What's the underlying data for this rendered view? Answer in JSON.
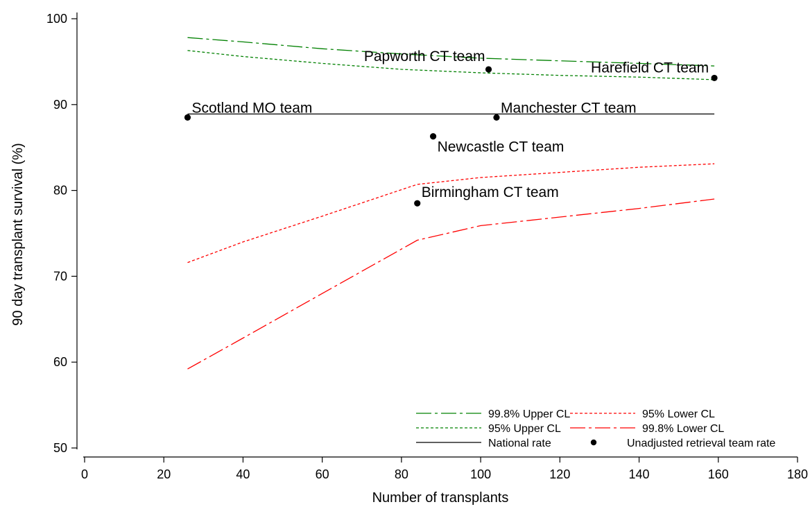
{
  "chart_data": {
    "type": "line",
    "xlabel": "Number of transplants",
    "ylabel": "90 day transplant survival (%)",
    "xlim": [
      0,
      180
    ],
    "ylim": [
      50,
      100
    ],
    "xticks": [
      0,
      20,
      40,
      60,
      80,
      100,
      120,
      140,
      160,
      180
    ],
    "yticks": [
      50,
      60,
      70,
      80,
      90,
      100
    ],
    "grid": false,
    "legend_position": "bottom-right",
    "series": [
      {
        "name": "99.8% Upper CL",
        "style": "dash-dot",
        "color": "#008000",
        "x": [
          26,
          40,
          60,
          80,
          100,
          120,
          140,
          159
        ],
        "y": [
          97.8,
          97.3,
          96.5,
          95.9,
          95.4,
          95.1,
          94.8,
          94.5
        ]
      },
      {
        "name": "95% Lower CL",
        "style": "dotted",
        "color": "#ff0000",
        "x": [
          26,
          40,
          60,
          84,
          100,
          120,
          140,
          159
        ],
        "y": [
          71.6,
          74.0,
          77.0,
          80.7,
          81.5,
          82.1,
          82.7,
          83.1
        ]
      },
      {
        "name": "95% Upper CL",
        "style": "dotted",
        "color": "#008000",
        "x": [
          26,
          40,
          60,
          80,
          100,
          120,
          140,
          159
        ],
        "y": [
          96.3,
          95.6,
          94.8,
          94.1,
          93.7,
          93.4,
          93.2,
          92.9
        ]
      },
      {
        "name": "99.8% Lower CL",
        "style": "dash-dot",
        "color": "#ff0000",
        "x": [
          26,
          40,
          60,
          84,
          100,
          120,
          140,
          159
        ],
        "y": [
          59.2,
          62.8,
          68.0,
          74.2,
          75.9,
          76.9,
          77.9,
          79.0
        ]
      },
      {
        "name": "National rate",
        "style": "solid",
        "color": "#000000",
        "x": [
          26,
          159
        ],
        "y": [
          88.9,
          88.9
        ]
      },
      {
        "name": "Unadjusted retrieval team rate",
        "style": "markers",
        "color": "#000000",
        "points": [
          {
            "label": "Scotland MO team",
            "x": 26,
            "y": 88.5
          },
          {
            "label": "Papworth CT team",
            "x": 102,
            "y": 94.1
          },
          {
            "label": "Harefield CT team",
            "x": 159,
            "y": 93.1
          },
          {
            "label": "Manchester CT team",
            "x": 104,
            "y": 88.5
          },
          {
            "label": "Newcastle CT team",
            "x": 88,
            "y": 86.3
          },
          {
            "label": "Birmingham CT team",
            "x": 84,
            "y": 78.5
          }
        ]
      }
    ]
  }
}
